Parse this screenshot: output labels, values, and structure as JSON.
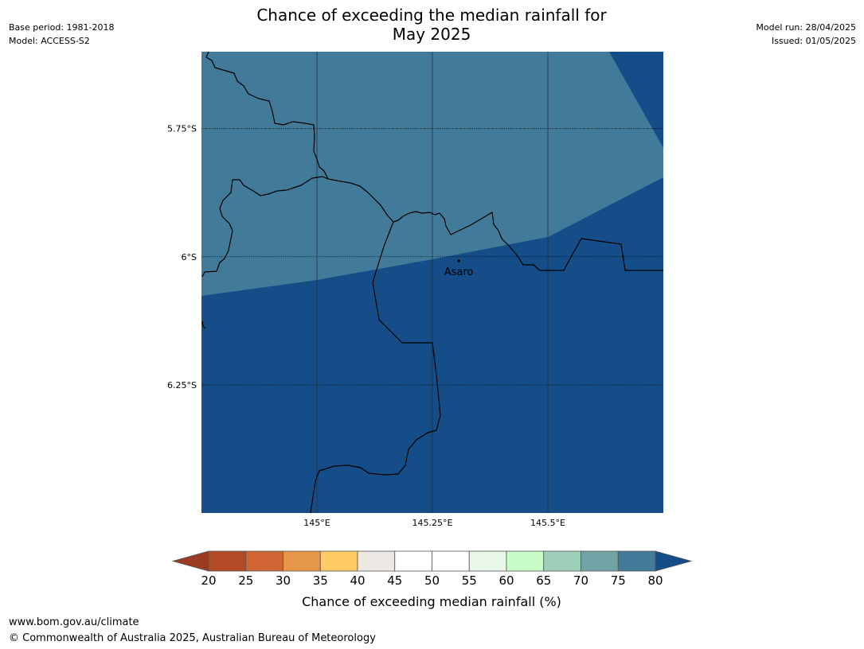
{
  "header": {
    "base_period": "Base period: 1981-2018",
    "model": "Model: ACCESS-S2",
    "title_line1": "Chance of exceeding the median rainfall for",
    "title_line2": "May 2025",
    "model_run": "Model run: 28/04/2025",
    "issued": "Issued: 01/05/2025"
  },
  "map": {
    "lon_range": [
      144.75,
      145.75
    ],
    "lat_range": [
      -5.6,
      -6.5
    ],
    "lat_gridlines": [
      {
        "value": -5.75,
        "label": "5.75°S"
      },
      {
        "value": -6.0,
        "label": "6°S"
      },
      {
        "value": -6.25,
        "label": "6.25°S"
      }
    ],
    "lon_gridlines": [
      {
        "value": 145.0,
        "label": "145°E"
      },
      {
        "value": 145.25,
        "label": "145.25°E"
      },
      {
        "value": 145.5,
        "label": "145.5°E"
      }
    ],
    "zones": [
      {
        "category": "75-80",
        "color": "#427a9a"
      },
      {
        "category": ">80",
        "color": "#144d87"
      }
    ],
    "places": [
      {
        "name": "Asaro",
        "lon": 145.307,
        "lat": -6.008
      }
    ]
  },
  "colorbar": {
    "label": "Chance of exceeding median rainfall (%)",
    "ticks": [
      "20",
      "25",
      "30",
      "35",
      "40",
      "45",
      "50",
      "55",
      "60",
      "65",
      "70",
      "75",
      "80"
    ],
    "under_color": "#9a3b22",
    "over_color": "#144d87",
    "colors": [
      "#b44a26",
      "#cf6532",
      "#e59646",
      "#fecb67",
      "#ede8e3",
      "#ffffff",
      "#ffffff",
      "#e9f7e9",
      "#c8fcc8",
      "#9ecfb8",
      "#70a4a5",
      "#427a9a"
    ]
  },
  "footer": {
    "url": "www.bom.gov.au/climate",
    "copyright": "© Commonwealth of Australia 2025, Australian Bureau of Meteorology"
  }
}
